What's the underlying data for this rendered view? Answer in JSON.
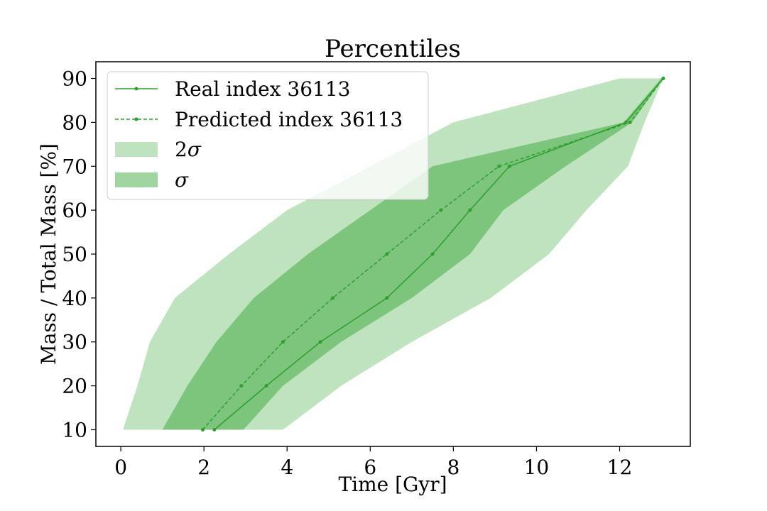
{
  "chart_data": {
    "type": "area",
    "title": "Percentiles",
    "xlabel": "Time [Gyr]",
    "ylabel": "Mass / Total Mass [%]",
    "xlim": [
      -0.6,
      13.7
    ],
    "ylim": [
      6.2,
      93.8
    ],
    "xticks": [
      0,
      2,
      4,
      6,
      8,
      10,
      12
    ],
    "yticks": [
      10,
      20,
      30,
      40,
      50,
      60,
      70,
      80,
      90
    ],
    "grid": false,
    "legend_position": "top-left",
    "percentile_levels": [
      10,
      20,
      30,
      40,
      50,
      60,
      70,
      80,
      90
    ],
    "bands": [
      {
        "name": "2σ",
        "legend_label": "2",
        "legend_symbol": "σ",
        "color": "#2ca02c",
        "opacity": 0.3,
        "lower_time": [
          3.9,
          5.3,
          7.0,
          8.9,
          10.3,
          11.2,
          12.2,
          12.6,
          13.05
        ],
        "upper_time": [
          0.05,
          0.4,
          0.7,
          1.3,
          2.6,
          4.0,
          6.0,
          8.0,
          12.0
        ]
      },
      {
        "name": "σ",
        "legend_label": "",
        "legend_symbol": "σ",
        "color": "#2ca02c",
        "opacity": 0.45,
        "lower_time": [
          2.95,
          3.9,
          5.3,
          7.0,
          8.4,
          9.2,
          10.7,
          12.3,
          13.05
        ],
        "upper_time": [
          1.0,
          1.6,
          2.3,
          3.2,
          4.5,
          6.0,
          7.5,
          12.1,
          13.0
        ]
      }
    ],
    "series": [
      {
        "name": "Real index 36113",
        "style": "solid",
        "color": "#2ca02c",
        "x": [
          2.25,
          3.5,
          4.8,
          6.4,
          7.5,
          8.4,
          9.35,
          12.15,
          13.05
        ],
        "y": [
          10,
          20,
          30,
          40,
          50,
          60,
          70,
          80,
          90
        ]
      },
      {
        "name": "Predicted index 36113",
        "style": "dashed",
        "color": "#2ca02c",
        "x": [
          1.97,
          2.9,
          3.9,
          5.1,
          6.4,
          7.7,
          9.1,
          12.25,
          13.05
        ],
        "y": [
          10,
          20,
          30,
          40,
          50,
          60,
          70,
          80,
          90
        ]
      }
    ]
  }
}
